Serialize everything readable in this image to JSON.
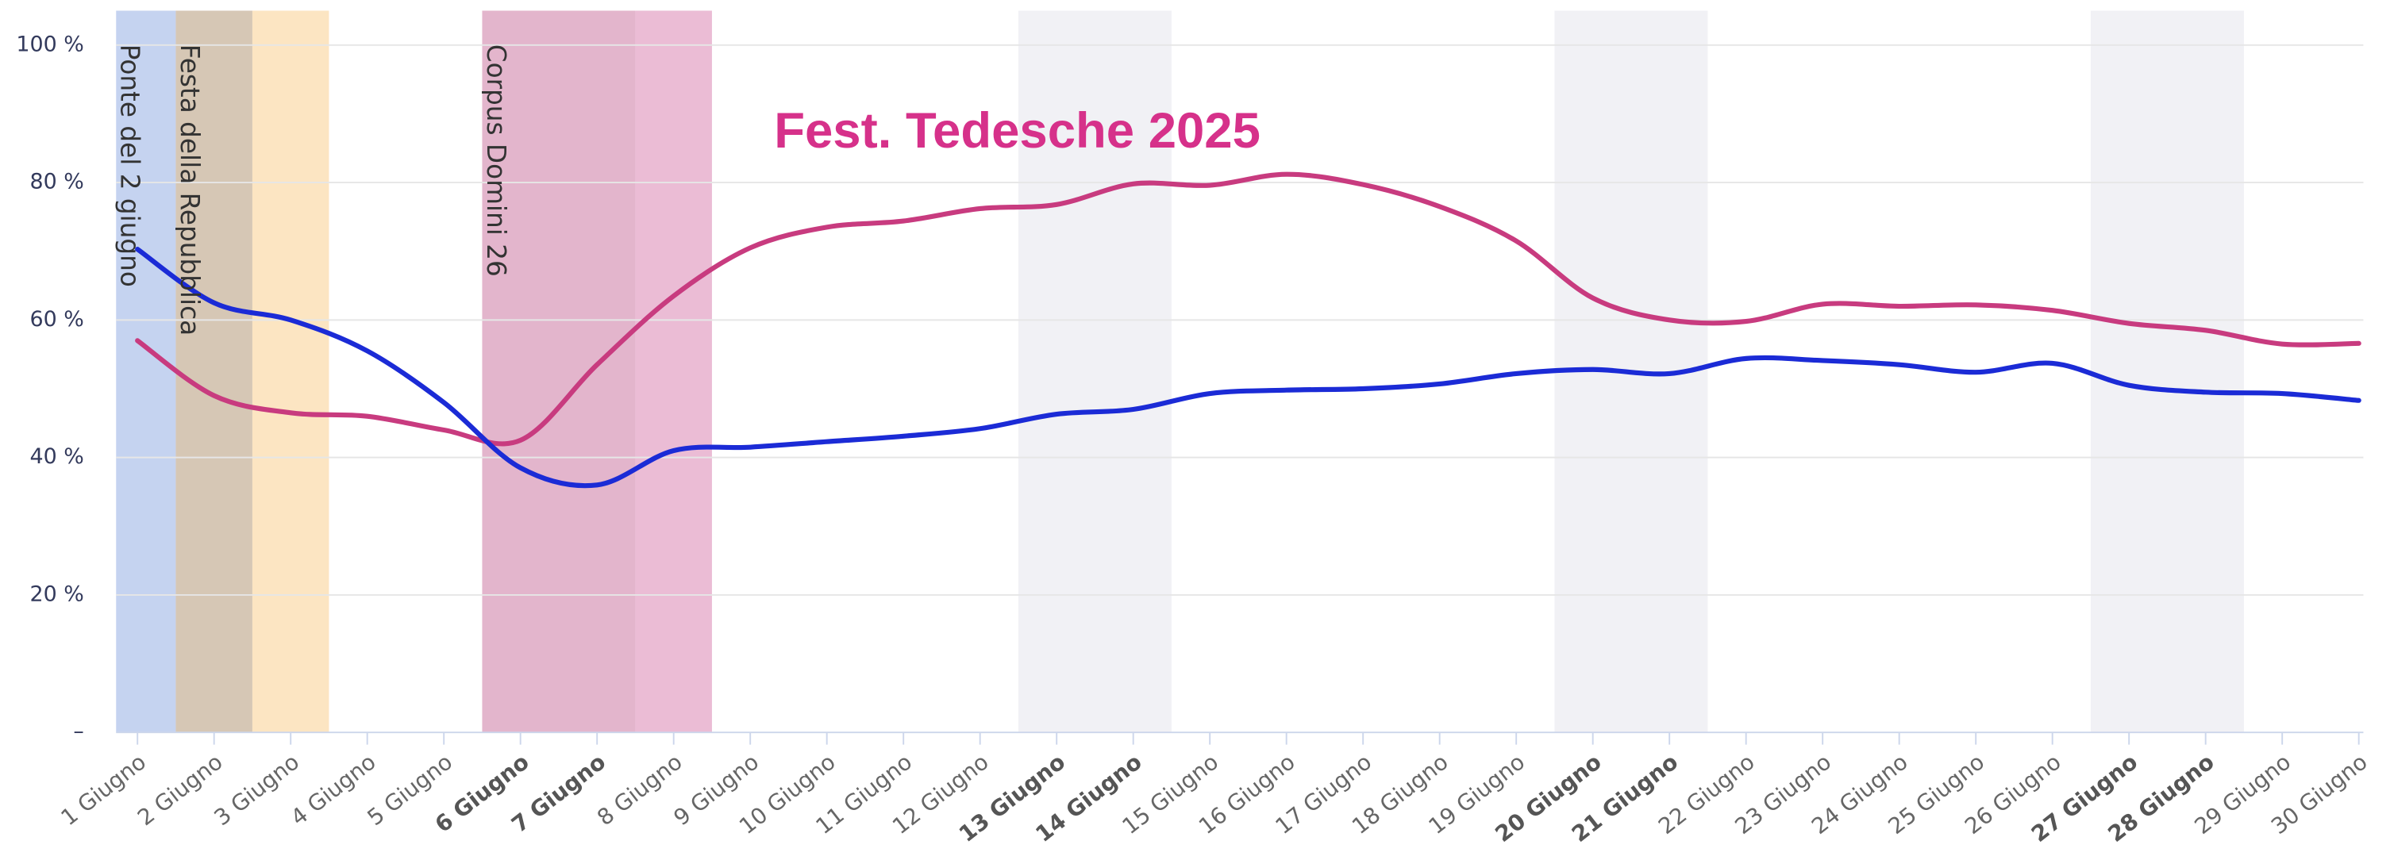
{
  "chart_data": {
    "type": "line",
    "title": "Fest. Tedesche 2025",
    "title_color": "#d6318a",
    "categories": [
      "1 Giugno",
      "2 Giugno",
      "3 Giugno",
      "4 Giugno",
      "5 Giugno",
      "6 Giugno",
      "7 Giugno",
      "8 Giugno",
      "9 Giugno",
      "10 Giugno",
      "11 Giugno",
      "12 Giugno",
      "13 Giugno",
      "14 Giugno",
      "15 Giugno",
      "16 Giugno",
      "17 Giugno",
      "18 Giugno",
      "19 Giugno",
      "20 Giugno",
      "21 Giugno",
      "22 Giugno",
      "23 Giugno",
      "24 Giugno",
      "25 Giugno",
      "26 Giugno",
      "27 Giugno",
      "28 Giugno",
      "29 Giugno",
      "30 Giugno"
    ],
    "bold_categories": [
      "6 Giugno",
      "7 Giugno",
      "13 Giugno",
      "14 Giugno",
      "20 Giugno",
      "21 Giugno",
      "27 Giugno",
      "28 Giugno"
    ],
    "series": [
      {
        "color": "#c83b7f",
        "values": [
          57,
          49,
          46.5,
          46,
          44,
          42.5,
          53.5,
          63.5,
          70.5,
          73.5,
          74.4,
          76.2,
          76.8,
          79.8,
          79.6,
          81.2,
          79.7,
          76.5,
          71.5,
          63.2,
          60,
          59.8,
          62.3,
          62,
          62.2,
          61.4,
          59.5,
          58.5,
          56.5,
          56.6
        ]
      },
      {
        "color": "#1b2bd6",
        "values": [
          70.3,
          62.5,
          60,
          55.5,
          48,
          38.5,
          36,
          41,
          41.5,
          42.3,
          43.1,
          44.2,
          46.3,
          47,
          49.3,
          49.8,
          50,
          50.7,
          52.2,
          52.8,
          52.2,
          54.4,
          54.1,
          53.5,
          52.4,
          53.7,
          50.5,
          49.5,
          49.3,
          48.3
        ]
      }
    ],
    "bands": [
      {
        "label": "Ponte del 2 giugno",
        "color": "#c5d3f0",
        "from": "1 Giugno",
        "to": "1 Giugno"
      },
      {
        "label": "Festa della Repubblica",
        "color": "#d6c7b5",
        "from": "2 Giugno",
        "to": "2 Giugno"
      },
      {
        "color": "#fce5c2",
        "from": "3 Giugno",
        "to": "3 Giugno"
      },
      {
        "label": "Corpus Domini 26",
        "color": "#e3b5cc",
        "from": "6 Giugno",
        "to": "7 Giugno"
      },
      {
        "color": "#ebbcd5",
        "from": "8 Giugno",
        "to": "8 Giugno"
      },
      {
        "color": "#f1f1f5",
        "from": "13 Giugno",
        "to": "14 Giugno"
      },
      {
        "color": "#f1f1f5",
        "from": "20 Giugno",
        "to": "21 Giugno"
      },
      {
        "color": "#f1f1f5",
        "from": "27 Giugno",
        "to": "28 Giugno"
      }
    ],
    "ylim": [
      0,
      105
    ],
    "yticks": [
      {
        "value": 0,
        "label": "–"
      },
      {
        "value": 20,
        "label": "20 %"
      },
      {
        "value": 40,
        "label": "40 %"
      },
      {
        "value": 60,
        "label": "60 %"
      },
      {
        "value": 80,
        "label": "80 %"
      },
      {
        "value": 100,
        "label": "100 %"
      }
    ],
    "grid": true
  }
}
